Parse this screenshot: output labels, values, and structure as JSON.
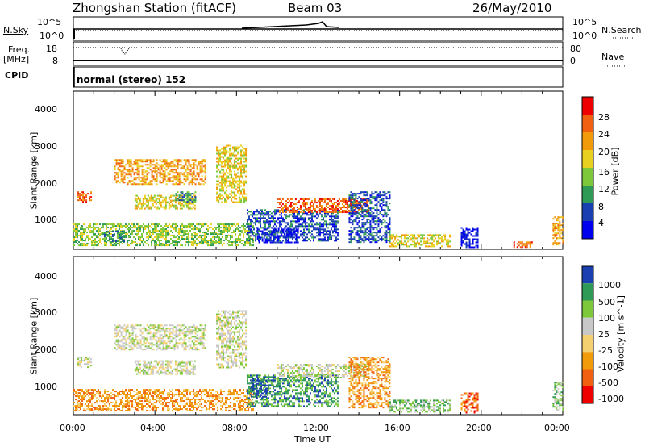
{
  "header": {
    "station_title": "Zhongshan Station (fitACF)",
    "beam": "Beam 03",
    "date": "26/May/2010"
  },
  "noise_panel": {
    "left_label": "N.Sky",
    "left_ticks": [
      "10^5",
      "10^0"
    ],
    "right_label": "N.Search",
    "right_ticks": [
      "10^5",
      "10^0"
    ]
  },
  "freq_panel": {
    "left_label_line1": "Freq.",
    "left_label_line2": "[MHz]",
    "left_ticks": [
      "18",
      "8"
    ],
    "right_label": "Nave",
    "right_ticks": [
      "80",
      "0"
    ]
  },
  "cpid_panel": {
    "label": "CPID",
    "text": "normal (stereo) 152"
  },
  "x_axis": {
    "label": "Time UT",
    "ticks": [
      "00:00",
      "04:00",
      "08:00",
      "12:00",
      "16:00",
      "20:00",
      "00:00"
    ]
  },
  "y_axis": {
    "label": "Slant Range [km]",
    "ticks": [
      "4000",
      "3000",
      "2000",
      "1000"
    ]
  },
  "chart_data": [
    {
      "type": "heatmap",
      "name": "power",
      "xlabel": "Time UT",
      "ylabel": "Slant Range [km]",
      "xlim": [
        0,
        24
      ],
      "ylim": [
        180,
        4600
      ],
      "colorbar": {
        "label": "Power [dB]",
        "ticks": [
          "28",
          "24",
          "20",
          "16",
          "12",
          "8",
          "4"
        ],
        "colors": [
          "#ee0000",
          "#f06010",
          "#f19a0a",
          "#e8d020",
          "#7dc83a",
          "#2e9a55",
          "#1a3fb0",
          "#0000ee"
        ]
      },
      "regions": [
        {
          "t": [
            0.2,
            0.9
          ],
          "r": [
            1500,
            1800
          ],
          "level": 1
        },
        {
          "t": [
            0.0,
            8.8
          ],
          "r": [
            300,
            900
          ],
          "level": 4
        },
        {
          "t": [
            1.5,
            2.5
          ],
          "r": [
            400,
            700
          ],
          "level": 5
        },
        {
          "t": [
            2.0,
            6.5
          ],
          "r": [
            2000,
            2700
          ],
          "level": 2
        },
        {
          "t": [
            3.0,
            6.0
          ],
          "r": [
            1300,
            1700
          ],
          "level": 3
        },
        {
          "t": [
            5.0,
            6.0
          ],
          "r": [
            1500,
            1800
          ],
          "level": 5
        },
        {
          "t": [
            7.0,
            8.5
          ],
          "r": [
            1500,
            3100
          ],
          "level": 3
        },
        {
          "t": [
            8.5,
            13.0
          ],
          "r": [
            400,
            1300
          ],
          "level": 6
        },
        {
          "t": [
            9.0,
            11.0
          ],
          "r": [
            350,
            800
          ],
          "level": 7
        },
        {
          "t": [
            10.0,
            14.5
          ],
          "r": [
            1200,
            1600
          ],
          "level": 1
        },
        {
          "t": [
            13.5,
            15.5
          ],
          "r": [
            400,
            1800
          ],
          "level": 6
        },
        {
          "t": [
            15.5,
            18.5
          ],
          "r": [
            250,
            600
          ],
          "level": 3
        },
        {
          "t": [
            19.0,
            19.8
          ],
          "r": [
            250,
            800
          ],
          "level": 7
        },
        {
          "t": [
            21.5,
            22.5
          ],
          "r": [
            250,
            400
          ],
          "level": 1
        },
        {
          "t": [
            23.5,
            24.0
          ],
          "r": [
            300,
            1100
          ],
          "level": 2
        }
      ]
    },
    {
      "type": "heatmap",
      "name": "velocity",
      "xlabel": "Time UT",
      "ylabel": "Slant Range [km]",
      "xlim": [
        0,
        24
      ],
      "ylim": [
        180,
        4600
      ],
      "colorbar": {
        "label": "Velocity [m s^-1]",
        "ticks": [
          "1000",
          "500",
          "100",
          "25",
          "-25",
          "-100",
          "-500",
          "-1000"
        ],
        "colors": [
          "#1a3fb0",
          "#2e9a55",
          "#7dc83a",
          "#c8c8c8",
          "#f5d070",
          "#f19a0a",
          "#f06010",
          "#ee0000"
        ]
      },
      "regions": [
        {
          "t": [
            0.2,
            0.9
          ],
          "r": [
            1500,
            1800
          ],
          "level": 3
        },
        {
          "t": [
            0.0,
            8.8
          ],
          "r": [
            300,
            900
          ],
          "level": 5
        },
        {
          "t": [
            2.0,
            6.5
          ],
          "r": [
            2000,
            2700
          ],
          "level": 3
        },
        {
          "t": [
            3.0,
            6.0
          ],
          "r": [
            1300,
            1700
          ],
          "level": 3
        },
        {
          "t": [
            7.0,
            8.5
          ],
          "r": [
            1500,
            3100
          ],
          "level": 3
        },
        {
          "t": [
            8.5,
            13.0
          ],
          "r": [
            400,
            1300
          ],
          "level": 1
        },
        {
          "t": [
            8.7,
            9.5
          ],
          "r": [
            700,
            1200
          ],
          "level": 0
        },
        {
          "t": [
            10.0,
            14.5
          ],
          "r": [
            1200,
            1600
          ],
          "level": 3
        },
        {
          "t": [
            13.5,
            15.5
          ],
          "r": [
            400,
            1800
          ],
          "level": 5
        },
        {
          "t": [
            15.5,
            18.5
          ],
          "r": [
            250,
            600
          ],
          "level": 2
        },
        {
          "t": [
            19.0,
            19.8
          ],
          "r": [
            250,
            800
          ],
          "level": 6
        },
        {
          "t": [
            23.5,
            24.0
          ],
          "r": [
            300,
            1100
          ],
          "level": 2
        }
      ]
    }
  ]
}
